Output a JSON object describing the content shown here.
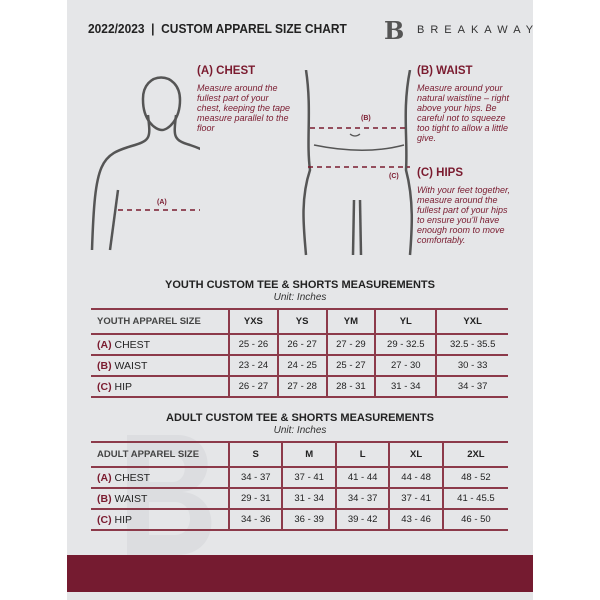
{
  "header": {
    "title": "2022/2023  |  CUSTOM APPAREL SIZE CHART",
    "brand": "BREAKAWAY",
    "logo_letter": "B"
  },
  "guide": {
    "chest": {
      "title": "(A) CHEST",
      "text": "Measure around the fullest part of your chest, keeping the tape measure parallel to the floor",
      "marker": "(A)"
    },
    "waist": {
      "title": "(B) WAIST",
      "text": "Measure around your natural waistline – right above your hips. Be careful not to squeeze too tight to allow a little give.",
      "marker": "(B)"
    },
    "hips": {
      "title": "(C) HIPS",
      "text": "With your feet together, measure around the fullest part of your hips to ensure you'll have enough room to move comfortably.",
      "marker": "(C)"
    }
  },
  "accent": "#751b30",
  "youth": {
    "title": "YOUTH CUSTOM TEE & SHORTS MEASUREMENTS",
    "unit": "Unit: Inches",
    "header": "YOUTH APPAREL SIZE",
    "sizes": [
      "YXS",
      "YS",
      "YM",
      "YL",
      "YXL"
    ],
    "rows": [
      {
        "letter": "(A)",
        "name": "CHEST",
        "values": [
          "25 - 26",
          "26 - 27",
          "27 - 29",
          "29 - 32.5",
          "32.5 - 35.5"
        ]
      },
      {
        "letter": "(B)",
        "name": "WAIST",
        "values": [
          "23 - 24",
          "24 - 25",
          "25 - 27",
          "27 - 30",
          "30 - 33"
        ]
      },
      {
        "letter": "(C)",
        "name": "HIP",
        "values": [
          "26 - 27",
          "27 - 28",
          "28 - 31",
          "31 - 34",
          "34 - 37"
        ]
      }
    ]
  },
  "adult": {
    "title": "ADULT CUSTOM TEE & SHORTS MEASUREMENTS",
    "unit": "Unit: Inches",
    "header": "ADULT APPAREL SIZE",
    "sizes": [
      "S",
      "M",
      "L",
      "XL",
      "2XL"
    ],
    "rows": [
      {
        "letter": "(A)",
        "name": "CHEST",
        "values": [
          "34 - 37",
          "37 - 41",
          "41 - 44",
          "44 - 48",
          "48 - 52"
        ]
      },
      {
        "letter": "(B)",
        "name": "WAIST",
        "values": [
          "29 - 31",
          "31 - 34",
          "34 - 37",
          "37 - 41",
          "41 - 45.5"
        ]
      },
      {
        "letter": "(C)",
        "name": "HIP",
        "values": [
          "34 - 36",
          "36 - 39",
          "39 - 42",
          "43 - 46",
          "46 - 50"
        ]
      }
    ]
  }
}
